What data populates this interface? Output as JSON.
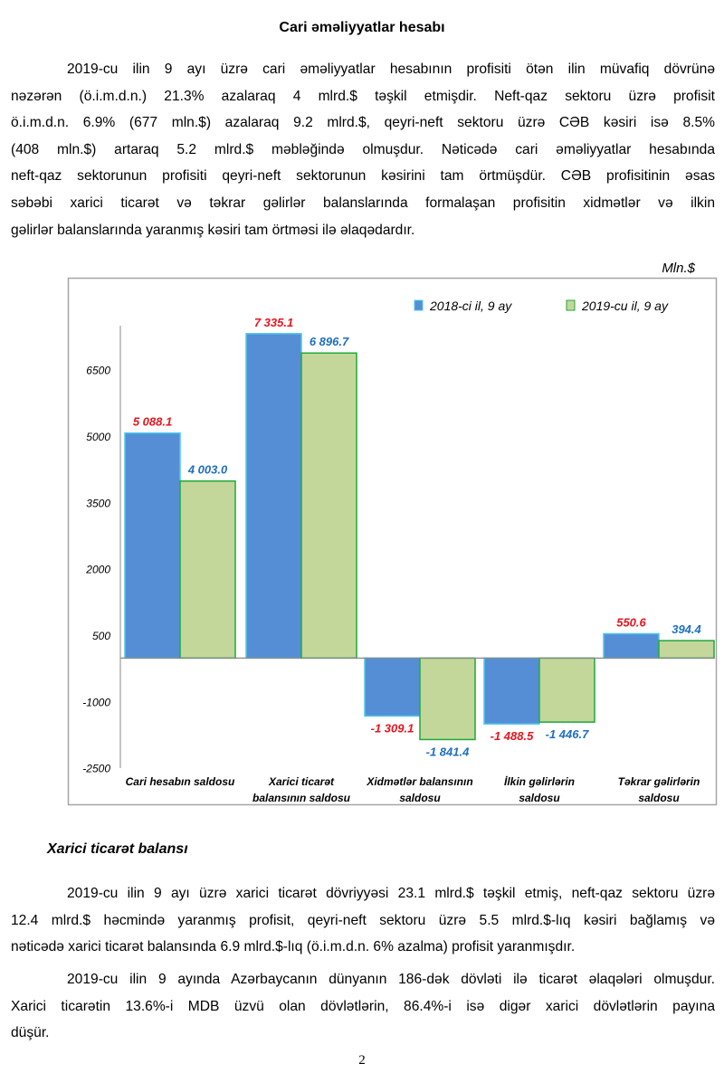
{
  "section1": {
    "title": "Cari əməliyyatlar hesabı",
    "paragraph_lines": [
      "2019-cu ilin 9 ayı üzrə cari əməliyyatlar hesabının profisiti ötən ilin müvafiq dövrünə",
      "nəzərən (ö.i.m.d.n.) 21.3% azalaraq 4 mlrd.$ təşkil etmişdir. Neft-qaz sektoru üzrə profisit",
      "ö.i.m.d.n. 6.9% (677 mln.$) azalaraq 9.2 mlrd.$, qeyri-neft sektoru üzrə CƏB kəsiri isə 8.5%",
      "(408 mln.$) artaraq 5.2 mlrd.$ məbləğində olmuşdur. Nəticədə cari əməliyyatlar hesabında",
      "neft-qaz sektorunun profisiti qeyri-neft sektorunun kəsirini tam örtmüşdür. CƏB profisitinin əsas",
      "səbəbi xarici ticarət və təkrar gəlirlər balanslarında formalaşan profisitin xidmətlər və ilkin",
      "gəlirlər balanslarında yaranmış kəsiri tam örtməsi ilə əlaqədardır."
    ],
    "unit": "Mln.$"
  },
  "chart_data": {
    "type": "bar",
    "categories": [
      [
        "Cari hesabın saldosu"
      ],
      [
        "Xarici ticarət",
        "balansının saldosu"
      ],
      [
        "Xidmətlər balansının",
        "saldosu"
      ],
      [
        "İlkin gəlirlərin",
        "saldosu"
      ],
      [
        "Təkrar gəlirlərin",
        "saldosu"
      ]
    ],
    "series": [
      {
        "name": "2018-ci il, 9 ay",
        "values": [
          5088.1,
          7335.1,
          -1309.1,
          -1488.5,
          550.6
        ],
        "labels": [
          "5 088.1",
          "7 335.1",
          "-1 309.1",
          "-1 488.5",
          "550.6"
        ],
        "color": "#558ed5",
        "border": "#4bc8f0",
        "label_color": "#e8141c"
      },
      {
        "name": "2019-cu il, 9 ay",
        "values": [
          4003.0,
          6896.7,
          -1841.4,
          -1446.7,
          394.4
        ],
        "labels": [
          "4 003.0",
          "6 896.7",
          "-1 841.4",
          "-1 446.7",
          "394.4"
        ],
        "color": "#c4d79b",
        "border": "#1fa83a",
        "label_color": "#1f6fc0"
      }
    ],
    "yticks": [
      6500,
      5000,
      3500,
      2000,
      500,
      -1000,
      -2500
    ],
    "ylim": [
      -2500,
      7500
    ],
    "grid": false,
    "legend_position": "top-right",
    "ylabel": "Mln.$"
  },
  "section2": {
    "title": "Xarici ticarət balansı",
    "paragraph1_lines": [
      "2019-cu ilin 9 ayı üzrə xarici ticarət dövriyyəsi 23.1 mlrd.$ təşkil etmiş, neft-qaz sektoru üzrə",
      "12.4 mlrd.$ həcmində yaranmış profisit, qeyri-neft sektoru üzrə 5.5 mlrd.$-lıq kəsiri bağlamış və",
      "nəticədə xarici ticarət balansında 6.9 mlrd.$-lıq (ö.i.m.d.n. 6% azalma) profisit yaranmışdır."
    ],
    "paragraph2_lines": [
      "2019-cu ilin 9 ayında Azərbaycanın dünyanın 186-dək dövləti ilə ticarət əlaqələri olmuşdur.",
      "Xarici ticarətin 13.6%-i MDB üzvü olan dövlətlərin, 86.4%-i isə digər xarici dövlətlərin payına",
      "düşür."
    ]
  },
  "page_number": "2"
}
